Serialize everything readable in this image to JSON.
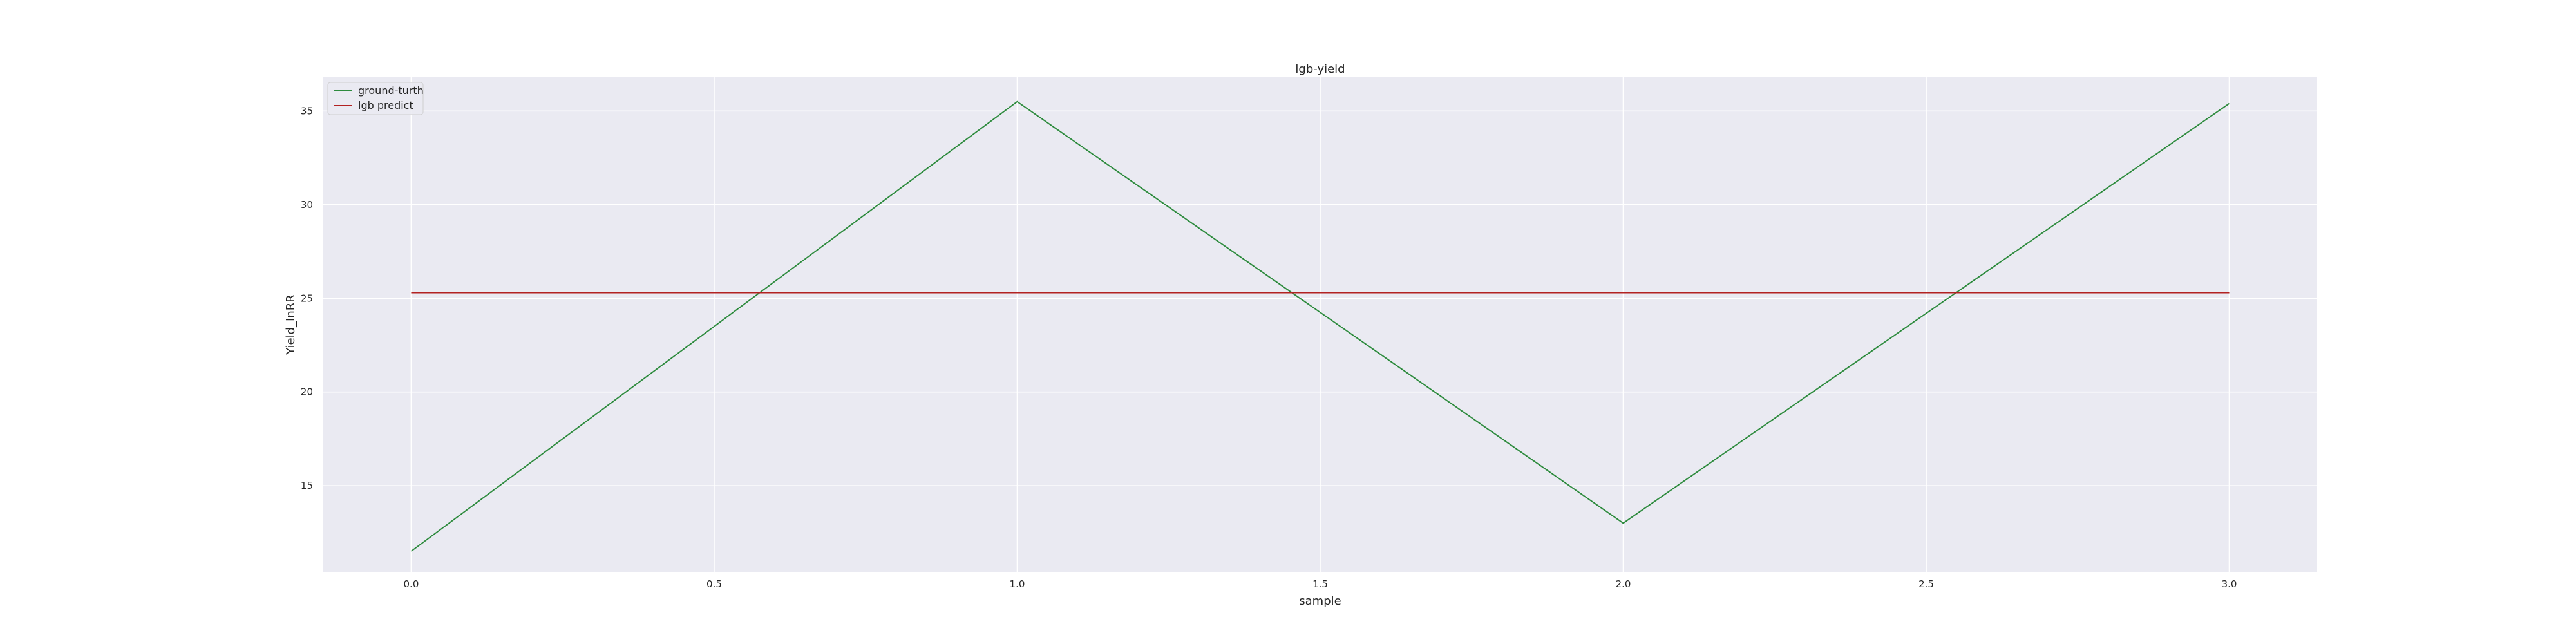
{
  "chart_data": {
    "type": "line",
    "title": "lgb-yield",
    "xlabel": "sample",
    "ylabel": "Yield_InRR",
    "xlim": [
      -0.145,
      3.145
    ],
    "ylim": [
      10.4,
      36.8
    ],
    "xticks": [
      0.0,
      0.5,
      1.0,
      1.5,
      2.0,
      2.5,
      3.0
    ],
    "xtick_labels": [
      "0.0",
      "0.5",
      "1.0",
      "1.5",
      "2.0",
      "2.5",
      "3.0"
    ],
    "yticks": [
      15,
      20,
      25,
      30,
      35
    ],
    "ytick_labels": [
      "15",
      "20",
      "25",
      "30",
      "35"
    ],
    "grid": true,
    "legend_position": "top-left",
    "background_color": "#eaeaf2",
    "grid_color": "#ffffff",
    "x": [
      0,
      1,
      2,
      3
    ],
    "series": [
      {
        "name": "ground-turth",
        "color": "#2e8b3e",
        "values": [
          11.5,
          35.5,
          13.0,
          35.4
        ]
      },
      {
        "name": "lgb predict",
        "color": "#b22222",
        "values": [
          25.3,
          25.3,
          25.3,
          25.3
        ]
      }
    ]
  }
}
